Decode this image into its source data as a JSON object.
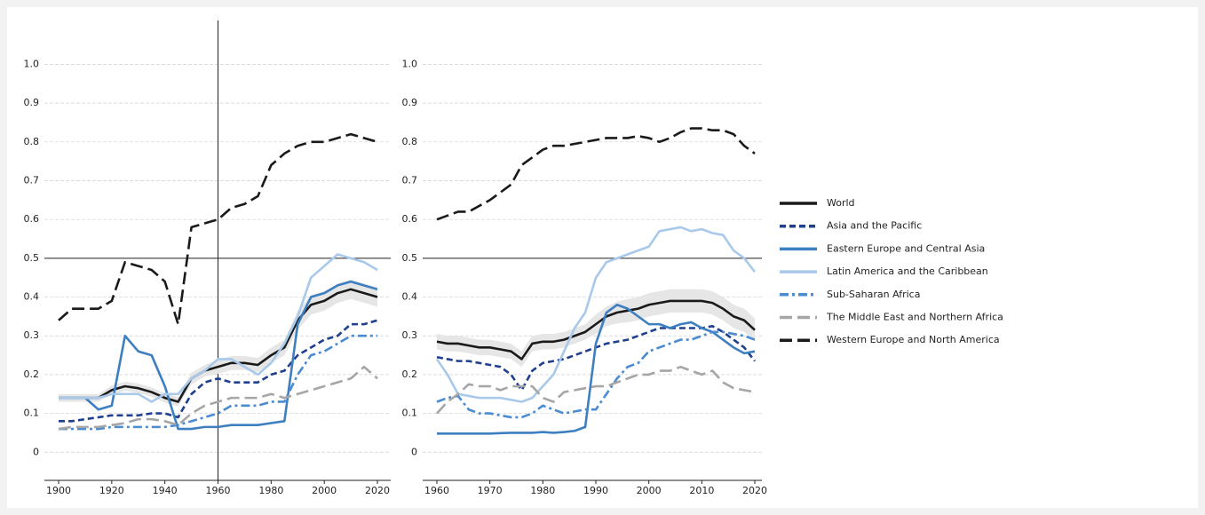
{
  "chart_data": [
    {
      "type": "line",
      "x": [
        1900,
        1905,
        1910,
        1915,
        1920,
        1925,
        1930,
        1935,
        1940,
        1945,
        1950,
        1955,
        1960,
        1965,
        1970,
        1975,
        1980,
        1985,
        1990,
        1995,
        2000,
        2005,
        2010,
        2015,
        2020
      ],
      "xlim": [
        1899,
        2021
      ],
      "xticks": [
        1900,
        1920,
        1940,
        1960,
        1980,
        2000,
        2020
      ],
      "ylim": [
        -0.02,
        1.04
      ],
      "yticks": [
        0,
        0.1,
        0.2,
        0.3,
        0.4,
        0.5,
        0.6,
        0.7,
        0.8,
        0.9,
        {
          "value": 1,
          "label": "1.0"
        }
      ],
      "grid": true,
      "hlines": [
        0.5
      ],
      "vlines": [
        1960
      ],
      "series": [
        {
          "color": "#1a1a1a",
          "dash": "solid",
          "values": [
            0.14,
            0.14,
            0.14,
            0.14,
            0.16,
            0.17,
            0.165,
            0.155,
            0.14,
            0.13,
            0.19,
            0.21,
            0.22,
            0.23,
            0.23,
            0.225,
            0.25,
            0.27,
            0.34,
            0.38,
            0.39,
            0.41,
            0.42,
            0.41,
            0.4
          ],
          "error": [
            0.01,
            0.01,
            0.01,
            0.01,
            0.012,
            0.012,
            0.012,
            0.012,
            0.012,
            0.012,
            0.015,
            0.015,
            0.018,
            0.018,
            0.018,
            0.018,
            0.02,
            0.02,
            0.025,
            0.025,
            0.025,
            0.025,
            0.025,
            0.025,
            0.025
          ]
        },
        {
          "color": "#1f3f8f",
          "dash": "dash",
          "values": [
            0.08,
            0.08,
            0.085,
            0.09,
            0.095,
            0.095,
            0.095,
            0.1,
            0.1,
            0.09,
            0.15,
            0.18,
            0.19,
            0.18,
            0.18,
            0.18,
            0.2,
            0.21,
            0.25,
            0.27,
            0.29,
            0.3,
            0.33,
            0.33,
            0.34
          ]
        },
        {
          "color": "#3d7fc1",
          "dash": "solid",
          "values": [
            0.14,
            0.14,
            0.14,
            0.11,
            0.12,
            0.3,
            0.26,
            0.25,
            0.17,
            0.06,
            0.06,
            0.065,
            0.065,
            0.07,
            0.07,
            0.07,
            0.075,
            0.08,
            0.33,
            0.4,
            0.41,
            0.43,
            0.44,
            0.43,
            0.42
          ]
        },
        {
          "color": "#a9c9ea",
          "dash": "solid",
          "values": [
            0.14,
            0.14,
            0.14,
            0.14,
            0.15,
            0.15,
            0.15,
            0.13,
            0.15,
            0.15,
            0.19,
            0.21,
            0.24,
            0.24,
            0.22,
            0.2,
            0.23,
            0.28,
            0.35,
            0.45,
            0.48,
            0.51,
            0.5,
            0.49,
            0.47
          ]
        },
        {
          "color": "#4a8bd1",
          "dash": "dashdot",
          "values": [
            0.06,
            0.06,
            0.06,
            0.06,
            0.065,
            0.065,
            0.065,
            0.065,
            0.065,
            0.07,
            0.08,
            0.09,
            0.1,
            0.12,
            0.12,
            0.12,
            0.13,
            0.13,
            0.2,
            0.25,
            0.26,
            0.28,
            0.3,
            0.3,
            0.3
          ]
        },
        {
          "color": "#a6a6a6",
          "dash": "longdash",
          "values": [
            0.06,
            0.065,
            0.065,
            0.065,
            0.07,
            0.075,
            0.085,
            0.085,
            0.08,
            0.07,
            0.1,
            0.12,
            0.13,
            0.14,
            0.14,
            0.14,
            0.15,
            0.14,
            0.15,
            0.16,
            0.17,
            0.18,
            0.19,
            0.22,
            0.19
          ]
        },
        {
          "color": "#1a1a1a",
          "dash": "longdash",
          "values": [
            0.34,
            0.37,
            0.37,
            0.37,
            0.39,
            0.49,
            0.48,
            0.47,
            0.44,
            0.33,
            0.58,
            0.59,
            0.6,
            0.63,
            0.64,
            0.66,
            0.74,
            0.77,
            0.79,
            0.8,
            0.8,
            0.81,
            0.82,
            0.81,
            0.8
          ]
        }
      ]
    },
    {
      "type": "line",
      "x": [
        1960,
        1962,
        1964,
        1966,
        1968,
        1970,
        1972,
        1974,
        1976,
        1978,
        1980,
        1982,
        1984,
        1986,
        1988,
        1990,
        1992,
        1994,
        1996,
        1998,
        2000,
        2002,
        2004,
        2006,
        2008,
        2010,
        2012,
        2014,
        2016,
        2018,
        2020
      ],
      "xlim": [
        1959.5,
        2020.5
      ],
      "xticks": [
        1960,
        1970,
        1980,
        1990,
        2000,
        2010,
        2020
      ],
      "ylim": [
        -0.02,
        1.04
      ],
      "yticks": [
        0,
        0.1,
        0.2,
        0.3,
        0.4,
        0.5,
        0.6,
        0.7,
        0.8,
        0.9,
        {
          "value": 1,
          "label": "1.0"
        }
      ],
      "grid": true,
      "hlines": [
        0.5
      ],
      "vlines": [],
      "legend": "right",
      "series": [
        {
          "name": "World",
          "color": "#1a1a1a",
          "dash": "solid",
          "values": [
            0.285,
            0.28,
            0.28,
            0.275,
            0.27,
            0.27,
            0.265,
            0.26,
            0.24,
            0.28,
            0.285,
            0.285,
            0.29,
            0.3,
            0.31,
            0.33,
            0.35,
            0.36,
            0.365,
            0.37,
            0.38,
            0.385,
            0.39,
            0.39,
            0.39,
            0.39,
            0.385,
            0.37,
            0.35,
            0.34,
            0.315
          ],
          "error": [
            0.02,
            0.02,
            0.02,
            0.02,
            0.02,
            0.02,
            0.02,
            0.02,
            0.02,
            0.02,
            0.02,
            0.02,
            0.02,
            0.02,
            0.02,
            0.025,
            0.025,
            0.028,
            0.03,
            0.03,
            0.03,
            0.03,
            0.03,
            0.03,
            0.03,
            0.03,
            0.03,
            0.03,
            0.03,
            0.03,
            0.03
          ]
        },
        {
          "name": "Asia and the Pacific",
          "color": "#1f3f8f",
          "dash": "dash",
          "values": [
            0.245,
            0.24,
            0.235,
            0.235,
            0.23,
            0.225,
            0.22,
            0.2,
            0.16,
            0.21,
            0.23,
            0.235,
            0.24,
            0.25,
            0.26,
            0.27,
            0.28,
            0.285,
            0.29,
            0.3,
            0.31,
            0.32,
            0.32,
            0.32,
            0.32,
            0.32,
            0.325,
            0.31,
            0.29,
            0.27,
            0.235
          ]
        },
        {
          "name": "Eastern Europe and Central Asia",
          "color": "#3d7fc1",
          "dash": "solid",
          "values": [
            0.048,
            0.048,
            0.048,
            0.048,
            0.048,
            0.048,
            0.049,
            0.05,
            0.05,
            0.05,
            0.052,
            0.05,
            0.052,
            0.055,
            0.065,
            0.28,
            0.36,
            0.38,
            0.37,
            0.35,
            0.33,
            0.33,
            0.32,
            0.33,
            0.335,
            0.32,
            0.31,
            0.29,
            0.27,
            0.255,
            0.26
          ]
        },
        {
          "name": "Latin America and the Caribbean",
          "color": "#a9c9ea",
          "dash": "solid",
          "values": [
            0.24,
            0.2,
            0.15,
            0.145,
            0.14,
            0.14,
            0.14,
            0.135,
            0.13,
            0.14,
            0.17,
            0.2,
            0.26,
            0.32,
            0.36,
            0.45,
            0.49,
            0.5,
            0.51,
            0.52,
            0.53,
            0.57,
            0.575,
            0.58,
            0.57,
            0.575,
            0.565,
            0.56,
            0.52,
            0.5,
            0.465
          ]
        },
        {
          "name": "Sub-Saharan Africa",
          "color": "#4a8bd1",
          "dash": "dashdot",
          "values": [
            0.13,
            0.14,
            0.145,
            0.11,
            0.1,
            0.1,
            0.095,
            0.09,
            0.09,
            0.1,
            0.12,
            0.11,
            0.1,
            0.105,
            0.11,
            0.11,
            0.15,
            0.19,
            0.22,
            0.23,
            0.26,
            0.27,
            0.28,
            0.29,
            0.29,
            0.3,
            0.31,
            0.31,
            0.305,
            0.3,
            0.29
          ]
        },
        {
          "name": "The Middle East and Northern Africa",
          "color": "#a6a6a6",
          "dash": "longdash",
          "values": [
            0.1,
            0.13,
            0.15,
            0.175,
            0.17,
            0.17,
            0.16,
            0.17,
            0.17,
            0.17,
            0.14,
            0.13,
            0.155,
            0.16,
            0.165,
            0.17,
            0.17,
            0.18,
            0.19,
            0.2,
            0.2,
            0.21,
            0.21,
            0.22,
            0.21,
            0.2,
            0.21,
            0.18,
            0.165,
            0.16,
            0.155
          ]
        },
        {
          "name": "Western Europe and North America",
          "color": "#1a1a1a",
          "dash": "longdash",
          "values": [
            0.6,
            0.61,
            0.62,
            0.62,
            0.635,
            0.65,
            0.67,
            0.69,
            0.74,
            0.76,
            0.78,
            0.79,
            0.79,
            0.795,
            0.8,
            0.805,
            0.81,
            0.81,
            0.81,
            0.815,
            0.81,
            0.8,
            0.81,
            0.825,
            0.835,
            0.835,
            0.83,
            0.83,
            0.82,
            0.79,
            0.77
          ]
        }
      ]
    }
  ]
}
